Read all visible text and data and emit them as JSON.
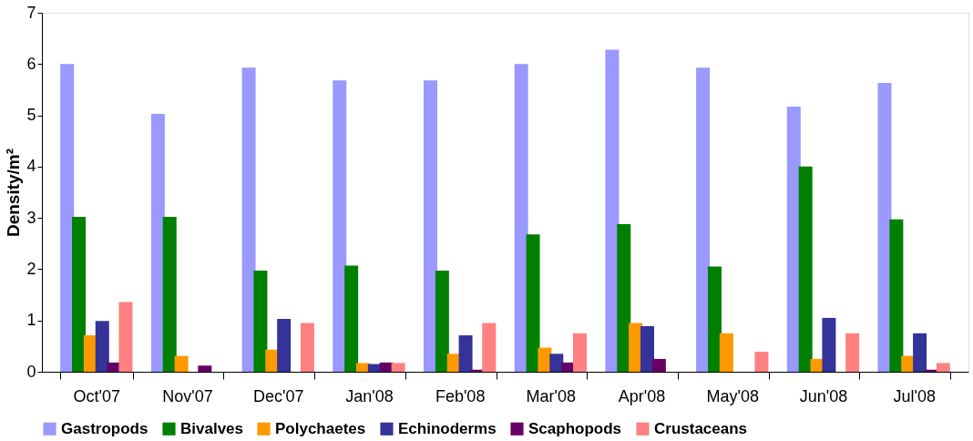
{
  "chart_data": {
    "type": "bar",
    "ylabel": "Density/m²",
    "categories": [
      "Oct'07",
      "Nov'07",
      "Dec'07",
      "Jan'08",
      "Feb'08",
      "Mar'08",
      "Apr'08",
      "May'08",
      "Jun'08",
      "Jul'08"
    ],
    "series": [
      {
        "name": "Gastropods",
        "color": "#9999ff",
        "values": [
          6.0,
          5.03,
          5.93,
          5.68,
          5.68,
          6.0,
          6.28,
          5.93,
          5.17,
          5.63
        ]
      },
      {
        "name": "Bivalves",
        "color": "#008000",
        "values": [
          3.02,
          3.02,
          1.97,
          2.07,
          1.97,
          2.68,
          2.88,
          2.05,
          4.0,
          2.97
        ]
      },
      {
        "name": "Polychaetes",
        "color": "#ff9900",
        "values": [
          0.71,
          0.31,
          0.43,
          0.17,
          0.35,
          0.47,
          0.95,
          0.75,
          0.25,
          0.31
        ]
      },
      {
        "name": "Echinoderms",
        "color": "#333399",
        "values": [
          0.99,
          0,
          1.03,
          0.15,
          0.71,
          0.35,
          0.89,
          0,
          1.05,
          0.75
        ]
      },
      {
        "name": "Scaphopods",
        "color": "#660066",
        "values": [
          0.18,
          0.12,
          0,
          0.18,
          0.04,
          0.18,
          0.25,
          0,
          0,
          0.04
        ]
      },
      {
        "name": "Crustaceans",
        "color": "#ff8080",
        "values": [
          1.36,
          0,
          0.95,
          0.17,
          0.95,
          0.75,
          0,
          0.39,
          0.75,
          0.17
        ]
      }
    ],
    "ylim": [
      0,
      7
    ],
    "yticks": [
      0,
      1,
      2,
      3,
      4,
      5,
      6,
      7
    ],
    "grid": false,
    "legend": "bottom"
  }
}
